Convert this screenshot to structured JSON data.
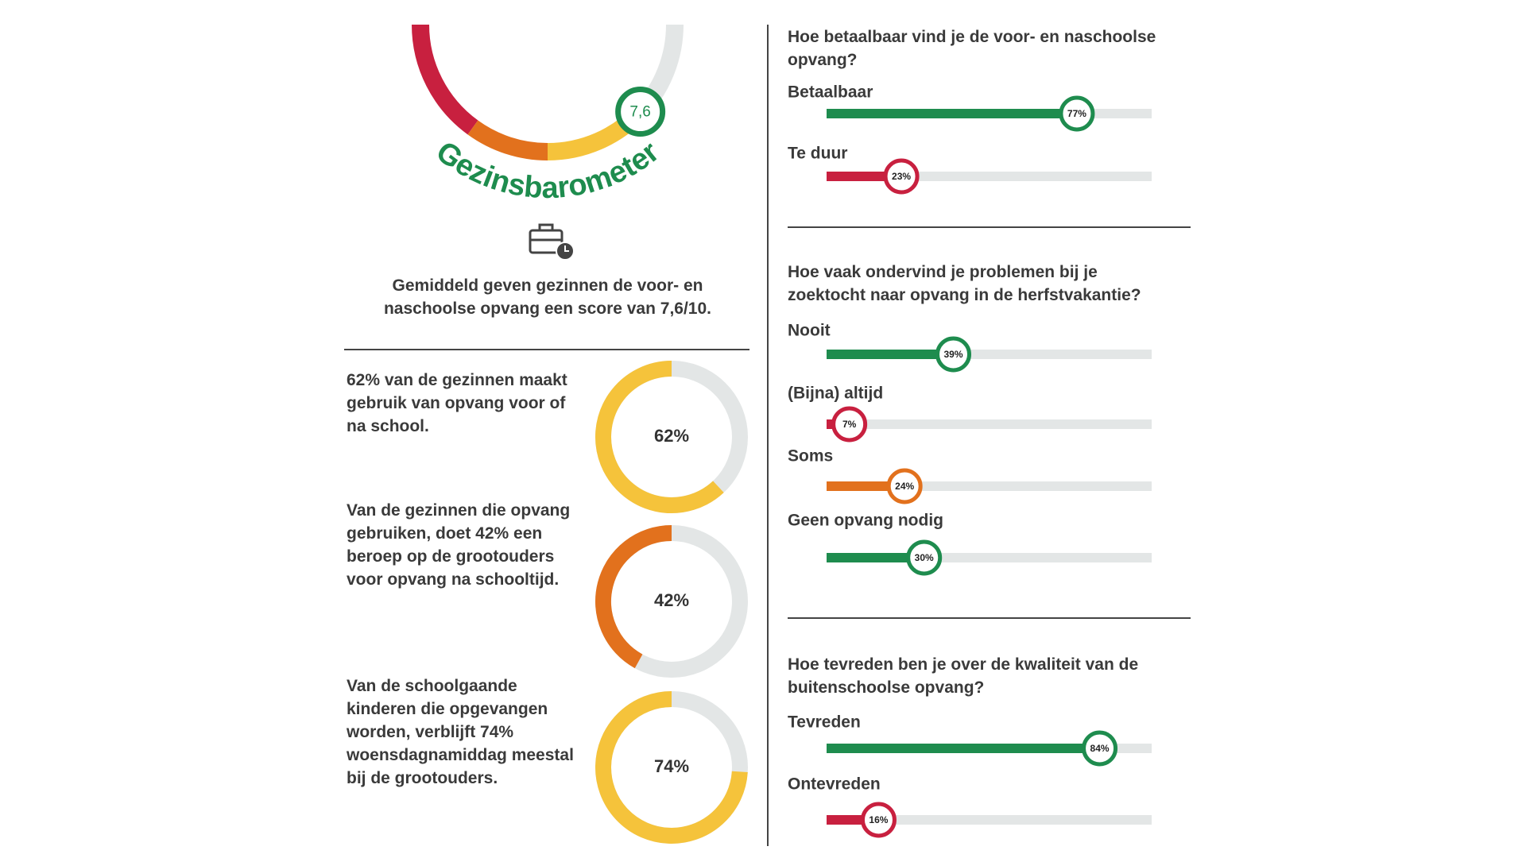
{
  "gauge": {
    "title": "Gezinsbarometer",
    "value": 7.6,
    "label": "7,6",
    "range": [
      0,
      10
    ],
    "caption": "Gemiddeld geven gezinnen de voor- en naschoolse opvang een score van 7,6/10."
  },
  "donuts": {
    "range": [
      0,
      100
    ],
    "items": [
      {
        "text": "62% van de gezinnen maakt gebruik van opvang voor of na school.",
        "value": 62,
        "value_label": "62%",
        "color": "#f5c33b"
      },
      {
        "text": "Van de gezinnen die opvang gebruiken, doet 42% een beroep op de grootouders voor opvang na schooltijd.",
        "value": 42,
        "value_label": "42%",
        "color": "#e2711d"
      },
      {
        "text": "Van de schoolgaande kinderen die opgevangen worden, verblijft 74% woensdagnamiddag meestal bij de grootouders.",
        "value": 74,
        "value_label": "74%",
        "color": "#f5c33b"
      }
    ]
  },
  "survey": {
    "xlim": [
      0,
      100
    ],
    "questions": [
      {
        "question": "Hoe betaalbaar vind je de voor- en naschoolse opvang?",
        "answers": [
          {
            "label": "Betaalbaar",
            "value": 77,
            "value_label": "77%",
            "color": "#1e8c4e"
          },
          {
            "label": "Te duur",
            "value": 23,
            "value_label": "23%",
            "color": "#c8203f"
          }
        ]
      },
      {
        "question": "Hoe vaak ondervind je problemen bij je zoektocht naar opvang in de herfstvakantie?",
        "answers": [
          {
            "label": "Nooit",
            "value": 39,
            "value_label": "39%",
            "color": "#1e8c4e"
          },
          {
            "label": "(Bijna) altijd",
            "value": 7,
            "value_label": "7%",
            "color": "#c8203f"
          },
          {
            "label": "Soms",
            "value": 24,
            "value_label": "24%",
            "color": "#e2711d"
          },
          {
            "label": "Geen opvang nodig",
            "value": 30,
            "value_label": "30%",
            "color": "#1e8c4e"
          }
        ]
      },
      {
        "question": "Hoe tevreden ben je over de kwaliteit van de buitenschoolse opvang?",
        "answers": [
          {
            "label": "Tevreden",
            "value": 84,
            "value_label": "84%",
            "color": "#1e8c4e"
          },
          {
            "label": "Ontevreden",
            "value": 16,
            "value_label": "16%",
            "color": "#c8203f"
          }
        ]
      }
    ]
  }
}
